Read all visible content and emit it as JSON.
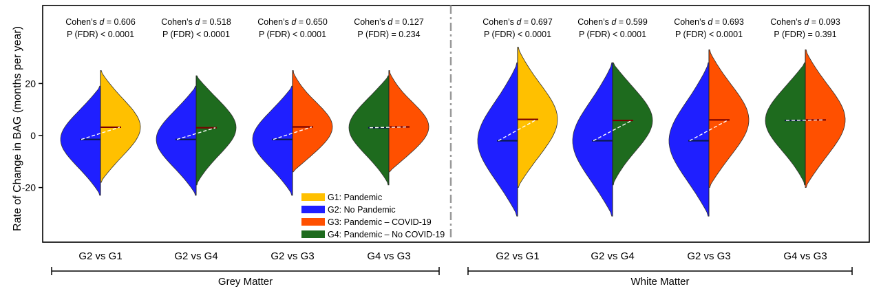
{
  "chart_data": {
    "type": "violin",
    "ylabel": "Rate of Change in BAG (months per year)",
    "y_ticks": [
      20,
      0,
      -20
    ],
    "ylim": [
      -41,
      50
    ],
    "colors": {
      "G1": "#ffc000",
      "G2": "#1f1fff",
      "G3": "#ff5000",
      "G4": "#1e6b1e"
    },
    "legend": {
      "placement": "bottom-center",
      "items": [
        {
          "key": "G1",
          "label": "G1: Pandemic"
        },
        {
          "key": "G2",
          "label": "G2: No Pandemic"
        },
        {
          "key": "G3",
          "label": "G3: Pandemic – COVID-19"
        },
        {
          "key": "G4",
          "label": "G4: Pandemic – No COVID-19"
        }
      ]
    },
    "groups": [
      {
        "label": "Grey Matter",
        "comparisons": [
          {
            "label": "G2 vs G1",
            "left": "G2",
            "right": "G1",
            "left_mean": -1.5,
            "right_mean": 3.2,
            "left_range": [
              -23,
              19
            ],
            "right_range": [
              -18,
              25
            ],
            "cohens_d": "0.606",
            "p_fdr": "P (FDR) < 0.0001"
          },
          {
            "label": "G2 vs G4",
            "left": "G2",
            "right": "G4",
            "left_mean": -1.5,
            "right_mean": 3.0,
            "left_range": [
              -23,
              19
            ],
            "right_range": [
              -19,
              23
            ],
            "cohens_d": "0.518",
            "p_fdr": "P (FDR) < 0.0001"
          },
          {
            "label": "G2 vs G3",
            "left": "G2",
            "right": "G3",
            "left_mean": -1.5,
            "right_mean": 3.3,
            "left_range": [
              -23,
              19
            ],
            "right_range": [
              -14,
              25
            ],
            "cohens_d": "0.650",
            "p_fdr": "P (FDR) < 0.0001"
          },
          {
            "label": "G4 vs G3",
            "left": "G4",
            "right": "G3",
            "left_mean": 3.0,
            "right_mean": 3.3,
            "left_range": [
              -19,
              23
            ],
            "right_range": [
              -14,
              25
            ],
            "cohens_d": "0.127",
            "p_fdr": "P (FDR) = 0.234"
          }
        ]
      },
      {
        "label": "White Matter",
        "comparisons": [
          {
            "label": "G2 vs G1",
            "left": "G2",
            "right": "G1",
            "left_mean": -2.0,
            "right_mean": 6.2,
            "left_range": [
              -31,
              28
            ],
            "right_range": [
              -20,
              34
            ],
            "cohens_d": "0.697",
            "p_fdr": "P (FDR) < 0.0001"
          },
          {
            "label": "G2 vs G4",
            "left": "G2",
            "right": "G4",
            "left_mean": -2.0,
            "right_mean": 5.8,
            "left_range": [
              -31,
              28
            ],
            "right_range": [
              -19,
              28
            ],
            "cohens_d": "0.599",
            "p_fdr": "P (FDR) < 0.0001"
          },
          {
            "label": "G2 vs G3",
            "left": "G2",
            "right": "G3",
            "left_mean": -2.0,
            "right_mean": 6.0,
            "left_range": [
              -31,
              28
            ],
            "right_range": [
              -20,
              33
            ],
            "cohens_d": "0.693",
            "p_fdr": "P (FDR) < 0.0001"
          },
          {
            "label": "G4 vs G3",
            "left": "G4",
            "right": "G3",
            "left_mean": 5.8,
            "right_mean": 6.0,
            "left_range": [
              -19,
              28
            ],
            "right_range": [
              -20,
              33
            ],
            "cohens_d": "0.093",
            "p_fdr": "P (FDR) = 0.391"
          }
        ]
      }
    ]
  }
}
